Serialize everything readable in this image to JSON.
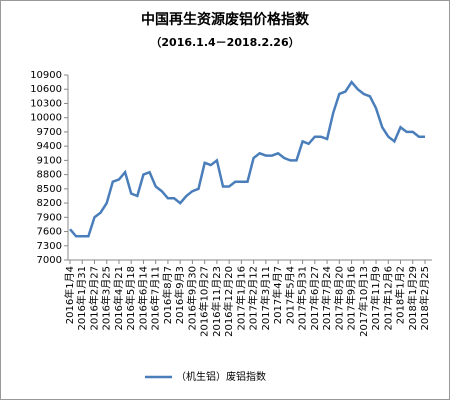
{
  "chart_data": {
    "type": "line",
    "title": "中国再生资源废铝价格指数",
    "subtitle": "（2016.1.4－2018.2.26）",
    "categories": [
      "2016年1月4",
      null,
      "2016年1月31",
      null,
      "2016年2月27",
      null,
      "2016年3月25",
      null,
      "2016年4月21",
      null,
      "2016年5月18",
      null,
      "2016年6月14",
      null,
      "2016年7月11",
      null,
      "2016年8月7",
      null,
      "2016年9月3",
      null,
      "2016年9月30",
      null,
      "2016年10月27",
      null,
      "2016年11月23",
      null,
      "2016年12月20",
      null,
      "2017年1月16",
      null,
      "2017年2月12",
      null,
      "2017年3月11",
      null,
      "2017年4月7",
      null,
      "2017年5月4",
      null,
      "2017年5月31",
      null,
      "2017年6月27",
      null,
      "2017年7月24",
      null,
      "2017年8月20",
      null,
      "2017年9月16",
      null,
      "2017年10月13",
      null,
      "2017年11月9",
      null,
      "2017年12月6",
      null,
      "2018年1月2",
      null,
      "2018年1月29",
      null,
      "2018年2月25"
    ],
    "series": [
      {
        "name": "（机生铝）废铝指数",
        "color": "#4a7ebb",
        "values": [
          7650,
          7500,
          7500,
          7500,
          7900,
          8000,
          8200,
          8650,
          8700,
          8850,
          8400,
          8350,
          8800,
          8850,
          8550,
          8450,
          8300,
          8300,
          8200,
          8350,
          8450,
          8500,
          9050,
          9000,
          9100,
          8550,
          8550,
          8650,
          8650,
          8650,
          9150,
          9250,
          9200,
          9200,
          9250,
          9150,
          9100,
          9100,
          9500,
          9450,
          9600,
          9600,
          9550,
          10100,
          10500,
          10550,
          10750,
          10600,
          10500,
          10450,
          10200,
          9800,
          9600,
          9500,
          9800,
          9700,
          9700,
          9600,
          9600
        ]
      }
    ],
    "ylim": [
      7000,
      10900
    ],
    "yticks": [
      7000,
      7300,
      7600,
      7900,
      8200,
      8500,
      8800,
      9100,
      9400,
      9700,
      10000,
      10300,
      10600,
      10900
    ],
    "grid": false
  }
}
